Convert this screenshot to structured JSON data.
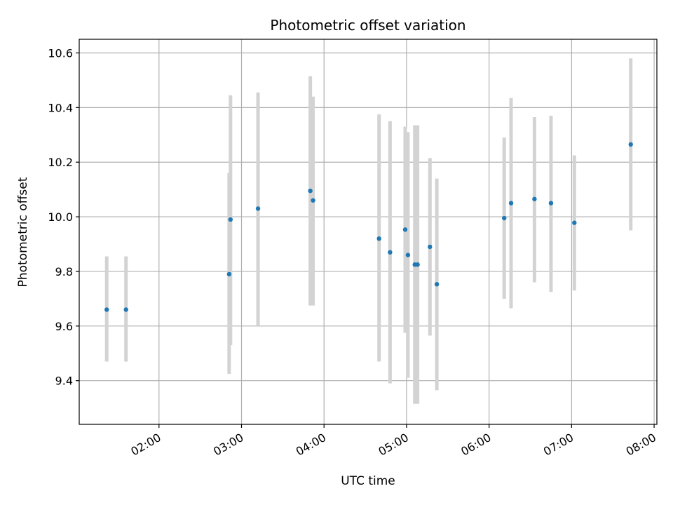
{
  "chart_data": {
    "type": "scatter",
    "title": "Photometric offset variation",
    "xlabel": "UTC time",
    "ylabel": "Photometric offset",
    "x_ticks": [
      "02:00",
      "03:00",
      "04:00",
      "05:00",
      "06:00",
      "07:00",
      "08:00"
    ],
    "y_ticks": [
      "9.4",
      "9.6",
      "9.8",
      "10.0",
      "10.2",
      "10.4",
      "10.6"
    ],
    "xlim": [
      "01:02",
      "08:02"
    ],
    "ylim": [
      9.24,
      10.65
    ],
    "grid": true,
    "colors": {
      "point": "#1f77b4",
      "errorbar": "#d3d3d3",
      "grid": "#b0b0b0"
    },
    "series": [
      {
        "points": [
          {
            "x": "01:22",
            "y": 9.66,
            "lo": 9.47,
            "hi": 9.855
          },
          {
            "x": "01:36",
            "y": 9.66,
            "lo": 9.47,
            "hi": 9.855
          },
          {
            "x": "02:51",
            "y": 9.79,
            "lo": 9.425,
            "hi": 10.16
          },
          {
            "x": "02:52",
            "y": 9.99,
            "lo": 9.53,
            "hi": 10.445
          },
          {
            "x": "03:12",
            "y": 10.03,
            "lo": 9.6,
            "hi": 10.455
          },
          {
            "x": "03:50",
            "y": 10.095,
            "lo": 9.675,
            "hi": 10.515
          },
          {
            "x": "03:52",
            "y": 10.06,
            "lo": 9.675,
            "hi": 10.44
          },
          {
            "x": "04:40",
            "y": 9.92,
            "lo": 9.47,
            "hi": 10.375
          },
          {
            "x": "04:48",
            "y": 9.87,
            "lo": 9.39,
            "hi": 10.35
          },
          {
            "x": "04:59",
            "y": 9.953,
            "lo": 9.575,
            "hi": 10.33
          },
          {
            "x": "05:01",
            "y": 9.86,
            "lo": 9.41,
            "hi": 10.31
          },
          {
            "x": "05:06",
            "y": 9.825,
            "lo": 9.315,
            "hi": 10.335
          },
          {
            "x": "05:08",
            "y": 9.825,
            "lo": 9.315,
            "hi": 10.335
          },
          {
            "x": "05:17",
            "y": 9.89,
            "lo": 9.565,
            "hi": 10.215
          },
          {
            "x": "05:22",
            "y": 9.753,
            "lo": 9.365,
            "hi": 10.14
          },
          {
            "x": "06:11",
            "y": 9.995,
            "lo": 9.7,
            "hi": 10.29
          },
          {
            "x": "06:16",
            "y": 10.05,
            "lo": 9.665,
            "hi": 10.435
          },
          {
            "x": "06:33",
            "y": 10.065,
            "lo": 9.76,
            "hi": 10.365
          },
          {
            "x": "06:45",
            "y": 10.05,
            "lo": 9.725,
            "hi": 10.37
          },
          {
            "x": "07:02",
            "y": 9.978,
            "lo": 9.73,
            "hi": 10.225
          },
          {
            "x": "07:43",
            "y": 10.265,
            "lo": 9.95,
            "hi": 10.58
          }
        ]
      }
    ]
  }
}
